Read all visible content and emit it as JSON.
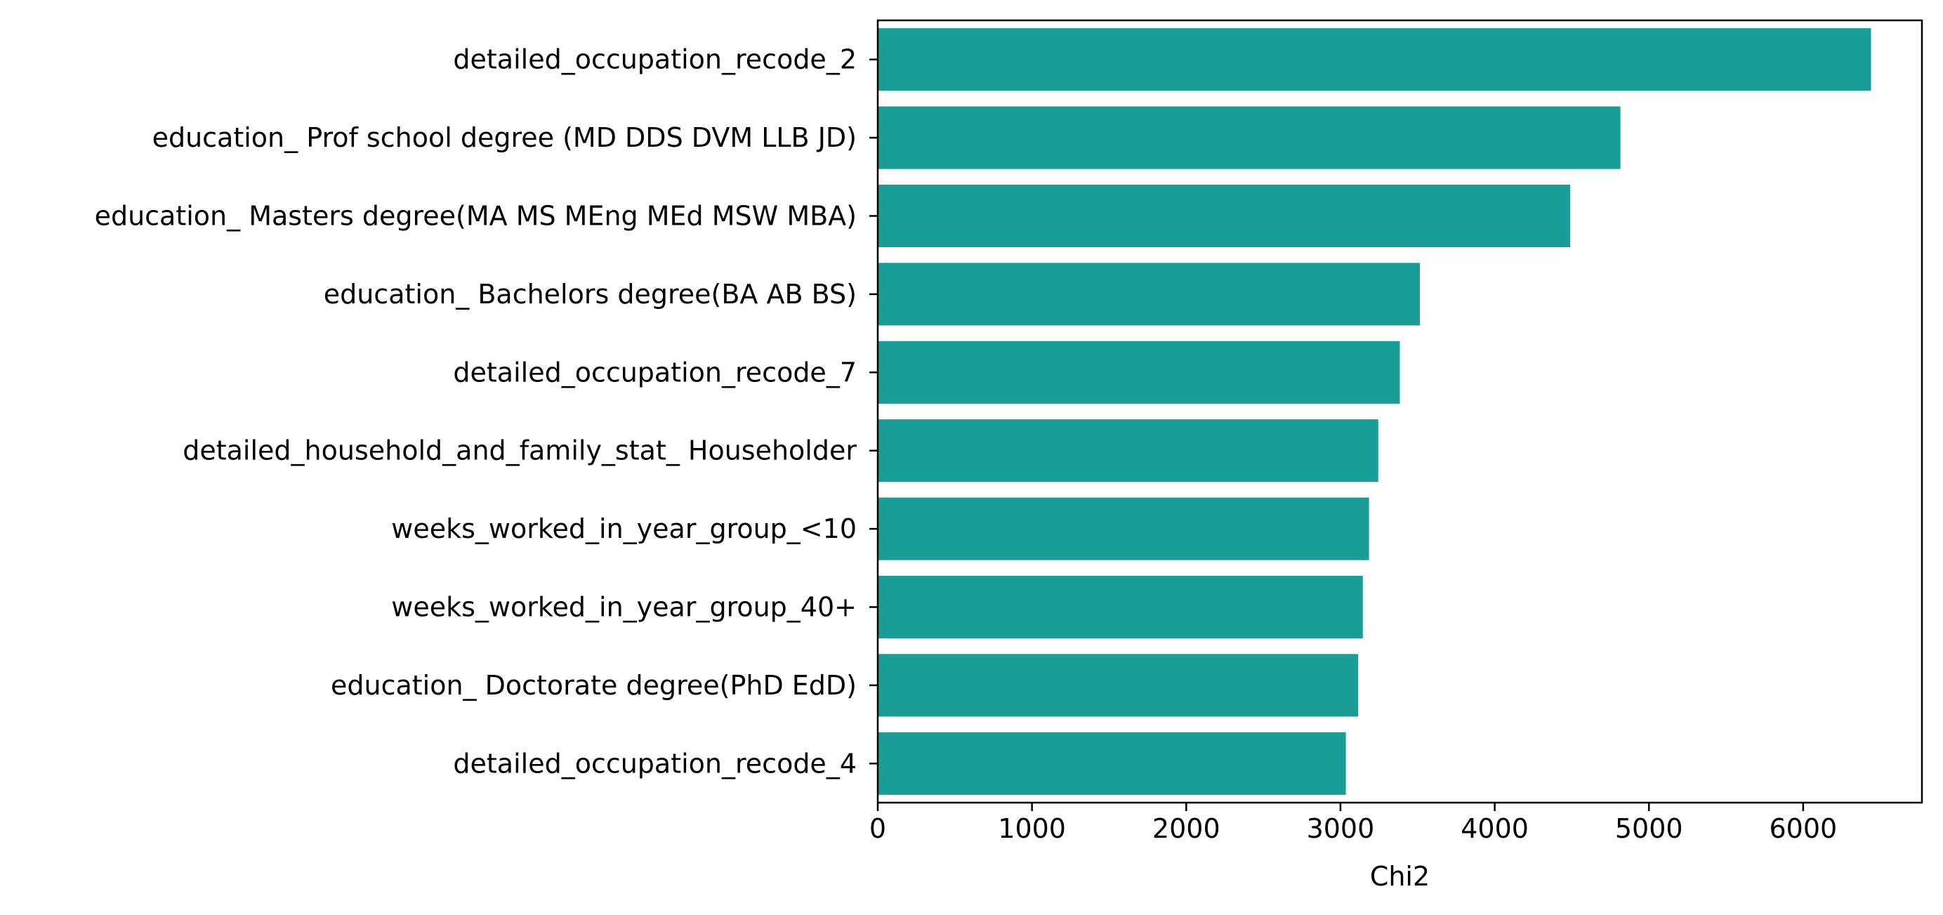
{
  "chart_data": {
    "type": "bar",
    "orientation": "horizontal",
    "categories": [
      "detailed_occupation_recode_2",
      "education_ Prof school degree (MD DDS DVM LLB JD)",
      "education_ Masters degree(MA MS MEng MEd MSW MBA)",
      "education_ Bachelors degree(BA AB BS)",
      "detailed_occupation_recode_7",
      "detailed_household_and_family_stat_ Householder",
      "weeks_worked_in_year_group_<10",
      "weeks_worked_in_year_group_40+",
      "education_ Doctorate degree(PhD EdD)",
      "detailed_occupation_recode_4"
    ],
    "values": [
      6440,
      4815,
      4490,
      3515,
      3385,
      3245,
      3185,
      3145,
      3115,
      3035
    ],
    "xlabel": "Chi2",
    "ylabel": "",
    "title": "",
    "xlim": [
      0,
      6770
    ],
    "xticks": [
      0,
      1000,
      2000,
      3000,
      4000,
      5000,
      6000
    ],
    "grid": false,
    "legend": "none",
    "bar_color": "#189e96"
  }
}
